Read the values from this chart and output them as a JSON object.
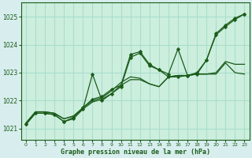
{
  "background_color": "#d8eeee",
  "plot_bg_color": "#cceedd",
  "grid_color": "#aaddcc",
  "line_color": "#1a5c1a",
  "marker_color": "#1a5c1a",
  "title": "Graphe pression niveau de la mer (hPa)",
  "xlim": [
    -0.5,
    23.5
  ],
  "ylim": [
    1020.6,
    1025.5
  ],
  "yticks": [
    1021,
    1022,
    1023,
    1024,
    1025
  ],
  "xticks": [
    0,
    1,
    2,
    3,
    4,
    5,
    6,
    7,
    8,
    9,
    10,
    11,
    12,
    13,
    14,
    15,
    16,
    17,
    18,
    19,
    20,
    21,
    22,
    23
  ],
  "series": [
    {
      "x": [
        0,
        1,
        2,
        3,
        4,
        5,
        6,
        7,
        8,
        9,
        10,
        11,
        12,
        13,
        14,
        15,
        16,
        17,
        18,
        19,
        20,
        21,
        22,
        23
      ],
      "y": [
        1021.2,
        1021.6,
        1021.6,
        1021.55,
        1021.35,
        1021.45,
        1021.7,
        1021.95,
        1022.05,
        1022.25,
        1022.55,
        1022.75,
        1022.75,
        1022.6,
        1022.5,
        1022.85,
        1022.9,
        1022.9,
        1022.95,
        1022.95,
        1022.95,
        1023.35,
        1023.0,
        1022.95
      ],
      "style": "line_only",
      "lw": 0.9
    },
    {
      "x": [
        0,
        1,
        2,
        3,
        4,
        5,
        6,
        7,
        8,
        9,
        10,
        11,
        12,
        13,
        14,
        15,
        16,
        17,
        18,
        19,
        20,
        21,
        22,
        23
      ],
      "y": [
        1021.2,
        1021.6,
        1021.6,
        1021.55,
        1021.35,
        1021.45,
        1021.75,
        1022.0,
        1022.1,
        1022.35,
        1022.65,
        1022.85,
        1022.8,
        1022.6,
        1022.5,
        1022.85,
        1022.9,
        1022.9,
        1022.95,
        1022.95,
        1023.0,
        1023.4,
        1023.3,
        1023.3
      ],
      "style": "line_only",
      "lw": 0.9
    },
    {
      "x": [
        0,
        1,
        2,
        3,
        4,
        5,
        6,
        7,
        8,
        9,
        10,
        11,
        12,
        13,
        14,
        15,
        16,
        17,
        18,
        19,
        20,
        21,
        22,
        23
      ],
      "y": [
        1021.15,
        1021.55,
        1021.55,
        1021.5,
        1021.25,
        1021.4,
        1021.75,
        1022.05,
        1022.15,
        1022.4,
        1022.55,
        1023.65,
        1023.75,
        1023.3,
        1023.1,
        1022.95,
        1023.85,
        1022.9,
        1023.0,
        1023.45,
        1024.4,
        1024.7,
        1024.95,
        1025.1
      ],
      "style": "line_marker",
      "lw": 0.9
    },
    {
      "x": [
        0,
        1,
        2,
        3,
        4,
        5,
        6,
        7,
        8,
        9,
        10,
        11,
        12,
        13,
        14,
        15,
        16,
        17,
        18,
        19,
        20,
        21,
        22,
        23
      ],
      "y": [
        1021.15,
        1021.55,
        1021.55,
        1021.5,
        1021.25,
        1021.35,
        1021.7,
        1022.95,
        1022.0,
        1022.25,
        1022.5,
        1023.55,
        1023.7,
        1023.25,
        1023.1,
        1022.85,
        1022.85,
        1022.9,
        1022.95,
        1023.45,
        1024.35,
        1024.65,
        1024.9,
        1025.1
      ],
      "style": "line_marker",
      "lw": 0.9
    }
  ]
}
